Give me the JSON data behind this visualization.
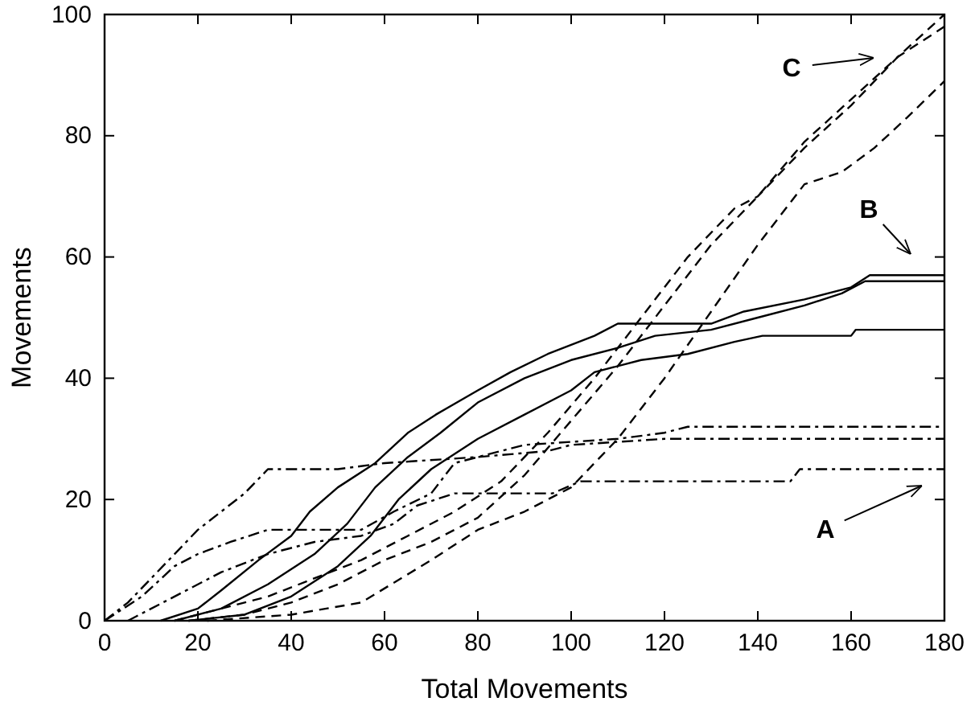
{
  "chart_data": {
    "type": "line",
    "xlabel": "Total Movements",
    "ylabel": "Movements",
    "xlim": [
      0,
      180
    ],
    "ylim": [
      0,
      100
    ],
    "xticks": [
      0,
      20,
      40,
      60,
      80,
      100,
      120,
      140,
      160,
      180
    ],
    "yticks": [
      0,
      20,
      40,
      60,
      80,
      100
    ],
    "grid": false,
    "marker": "none",
    "annotations": [
      "C",
      "B",
      "A"
    ],
    "series": [
      {
        "color": "#000000",
        "line_style": "dashed",
        "x": [
          15,
          25,
          35,
          45,
          55,
          65,
          75,
          85,
          95,
          105,
          115,
          125,
          135,
          140,
          150,
          160,
          170,
          180
        ],
        "values": [
          0,
          2,
          4,
          7,
          10,
          14,
          18,
          23,
          31,
          40,
          50,
          60,
          68,
          70,
          78,
          85,
          93,
          100
        ]
      },
      {
        "color": "#000000",
        "line_style": "dashed",
        "x": [
          18,
          30,
          40,
          50,
          60,
          70,
          80,
          90,
          100,
          110,
          120,
          130,
          140,
          150,
          160,
          170,
          180
        ],
        "values": [
          0,
          1,
          3,
          6,
          10,
          13,
          17,
          24,
          33,
          42,
          52,
          62,
          70,
          79,
          86,
          93,
          98
        ]
      },
      {
        "color": "#000000",
        "line_style": "dashed",
        "x": [
          22,
          40,
          55,
          70,
          80,
          90,
          100,
          110,
          120,
          130,
          140,
          150,
          158,
          165,
          172,
          180
        ],
        "values": [
          0,
          1,
          3,
          10,
          15,
          18,
          22,
          30,
          40,
          51,
          62,
          72,
          74,
          78,
          83,
          89
        ]
      },
      {
        "color": "#000000",
        "line_style": "solid",
        "x": [
          12,
          20,
          25,
          33,
          40,
          44,
          50,
          58,
          65,
          71,
          80,
          87,
          95,
          105,
          110,
          130,
          137,
          150,
          160,
          164,
          180
        ],
        "values": [
          0,
          2,
          5,
          10,
          14,
          18,
          22,
          26,
          31,
          34,
          38,
          41,
          44,
          47,
          49,
          49,
          51,
          53,
          55,
          57,
          57
        ]
      },
      {
        "color": "#000000",
        "line_style": "solid",
        "x": [
          15,
          25,
          35,
          45,
          52,
          58,
          65,
          72,
          80,
          90,
          100,
          110,
          118,
          130,
          140,
          150,
          158,
          163,
          180
        ],
        "values": [
          0,
          2,
          6,
          11,
          16,
          22,
          27,
          31,
          36,
          40,
          43,
          45,
          47,
          48,
          50,
          52,
          54,
          56,
          56
        ]
      },
      {
        "color": "#000000",
        "line_style": "solid",
        "x": [
          18,
          30,
          40,
          50,
          57,
          63,
          70,
          80,
          90,
          100,
          105,
          115,
          125,
          135,
          141,
          160,
          161,
          180
        ],
        "values": [
          0,
          1,
          4,
          9,
          14,
          20,
          25,
          30,
          34,
          38,
          41,
          43,
          44,
          46,
          47,
          47,
          48,
          48
        ]
      },
      {
        "color": "#000000",
        "line_style": "dashdot",
        "x": [
          0,
          5,
          10,
          15,
          20,
          25,
          30,
          35,
          50,
          60,
          80,
          95,
          100,
          120,
          180
        ],
        "values": [
          0,
          3,
          7,
          11,
          15,
          18,
          21,
          25,
          25,
          26,
          27,
          28,
          29,
          30,
          30
        ]
      },
      {
        "color": "#000000",
        "line_style": "dashdot",
        "x": [
          0,
          8,
          15,
          20,
          27,
          35,
          55,
          62,
          70,
          75,
          90,
          110,
          120,
          125,
          180
        ],
        "values": [
          0,
          4,
          9,
          11,
          13,
          15,
          15,
          18,
          21,
          26,
          29,
          30,
          31,
          32,
          32
        ]
      },
      {
        "color": "#000000",
        "line_style": "dashdot",
        "x": [
          5,
          15,
          25,
          35,
          45,
          55,
          62,
          67,
          75,
          96,
          102,
          147,
          149,
          180
        ],
        "values": [
          0,
          4,
          8,
          11,
          13,
          14,
          16,
          19,
          21,
          21,
          23,
          23,
          25,
          25
        ]
      }
    ]
  }
}
